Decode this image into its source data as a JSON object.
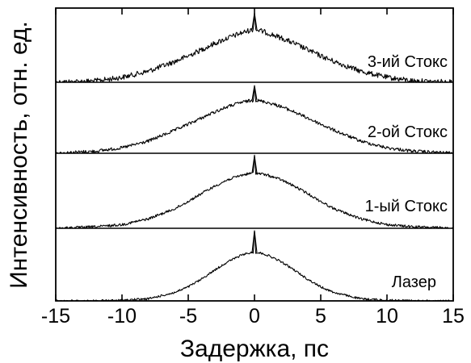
{
  "chart_data": {
    "type": "line",
    "xlabel": "Задержка, пс",
    "ylabel": "Интенсивность, отн. ед.",
    "xlim": [
      -15,
      15
    ],
    "xticks": [
      -15,
      -10,
      -5,
      0,
      5,
      10,
      15
    ],
    "xtick_labels": [
      "-15",
      "-10",
      "-5",
      "0",
      "5",
      "10",
      "15"
    ],
    "y_ticks_shown": false,
    "layout": "stacked panels sharing x axis, separated by horizontal lines",
    "series": [
      {
        "name": "3-ий Стокс",
        "x": [
          -15,
          -12,
          -10,
          -8,
          -6,
          -5,
          -4,
          -3,
          -2,
          -1,
          -0.5,
          -0.1,
          0,
          0.1,
          0.5,
          1,
          2,
          3,
          4,
          5,
          6,
          8,
          10,
          12,
          15
        ],
        "y": [
          0.0,
          0.02,
          0.07,
          0.16,
          0.3,
          0.38,
          0.47,
          0.56,
          0.64,
          0.71,
          0.74,
          0.76,
          1.0,
          0.76,
          0.74,
          0.71,
          0.64,
          0.56,
          0.47,
          0.38,
          0.3,
          0.16,
          0.07,
          0.02,
          0.0
        ]
      },
      {
        "name": "2-ой Стокс",
        "x": [
          -15,
          -12,
          -10,
          -8,
          -6,
          -5,
          -4,
          -3,
          -2,
          -1,
          -0.5,
          -0.1,
          0,
          0.1,
          0.5,
          1,
          2,
          3,
          4,
          5,
          6,
          8,
          10,
          12,
          15
        ],
        "y": [
          0.0,
          0.03,
          0.08,
          0.18,
          0.34,
          0.43,
          0.52,
          0.61,
          0.69,
          0.75,
          0.77,
          0.78,
          1.0,
          0.78,
          0.77,
          0.75,
          0.69,
          0.61,
          0.52,
          0.43,
          0.34,
          0.18,
          0.08,
          0.03,
          0.0
        ]
      },
      {
        "name": "1-ый Стокс",
        "x": [
          -15,
          -12,
          -10,
          -8,
          -6,
          -5,
          -4,
          -3,
          -2,
          -1,
          -0.5,
          -0.1,
          0,
          0.1,
          0.5,
          1,
          2,
          3,
          4,
          5,
          6,
          8,
          10,
          12,
          15
        ],
        "y": [
          0.0,
          0.02,
          0.05,
          0.13,
          0.27,
          0.37,
          0.48,
          0.58,
          0.67,
          0.73,
          0.75,
          0.76,
          1.0,
          0.76,
          0.75,
          0.73,
          0.67,
          0.58,
          0.48,
          0.37,
          0.27,
          0.13,
          0.05,
          0.02,
          0.0
        ]
      },
      {
        "name": "Лазер",
        "x": [
          -15,
          -12,
          -10,
          -8,
          -6,
          -5,
          -4,
          -3,
          -2,
          -1,
          -0.5,
          -0.1,
          0,
          0.1,
          0.5,
          1,
          2,
          3,
          4,
          5,
          6,
          8,
          10,
          12,
          15
        ],
        "y": [
          0.0,
          0.0,
          0.01,
          0.03,
          0.12,
          0.2,
          0.31,
          0.44,
          0.56,
          0.65,
          0.68,
          0.69,
          1.0,
          0.69,
          0.68,
          0.65,
          0.56,
          0.44,
          0.31,
          0.2,
          0.12,
          0.03,
          0.01,
          0.0,
          0.0
        ]
      }
    ]
  }
}
